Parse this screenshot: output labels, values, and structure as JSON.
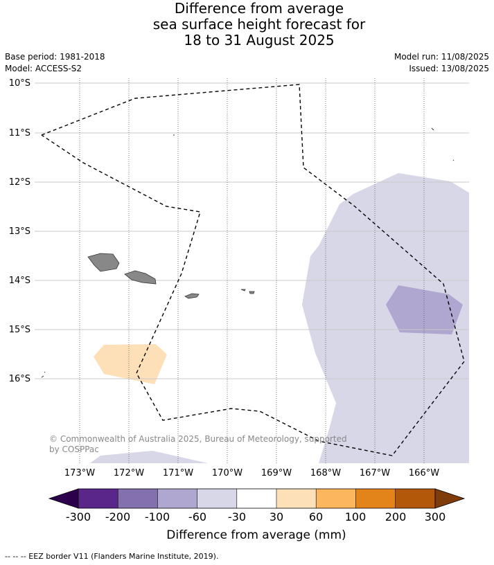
{
  "title": {
    "line1": "Difference from average",
    "line2": "sea surface height forecast for",
    "line3": "18 to 31 August 2025"
  },
  "meta": {
    "base_period": "Base period: 1981-2018",
    "model": "Model: ACCESS-S2",
    "model_run": "Model run: 11/08/2025",
    "issued": "Issued: 13/08/2025"
  },
  "map": {
    "lat_labels": [
      "10°S",
      "11°S",
      "12°S",
      "13°S",
      "14°S",
      "15°S",
      "16°S"
    ],
    "lon_labels": [
      "173°W",
      "172°W",
      "171°W",
      "170°W",
      "169°W",
      "168°W",
      "167°W",
      "166°W"
    ],
    "copyright": "© Commonwealth of Australia 2025, Bureau of Meteorology, supported",
    "copyright_line2": "by COSPPac"
  },
  "colorbar": {
    "tick_labels": [
      "-300",
      "-200",
      "-100",
      "-60",
      "-30",
      "30",
      "60",
      "100",
      "200",
      "300"
    ],
    "colors": [
      "#5b2689",
      "#8271ae",
      "#afa7d0",
      "#d7d7e8",
      "#ffffff",
      "#fde0b8",
      "#fbb65e",
      "#e2841a",
      "#b35809"
    ],
    "under_color": "#2d004b",
    "over_color": "#7f3b08",
    "title": "Difference from average (mm)"
  },
  "footer": {
    "text": "--  --  -- EEZ border V11 (Flanders Marine Institute, 2019)."
  },
  "colors": {
    "negative_small": "#d7d7e8",
    "negative_medium": "#afa7d0",
    "positive_small": "#fde0b8",
    "land": "#888888"
  }
}
